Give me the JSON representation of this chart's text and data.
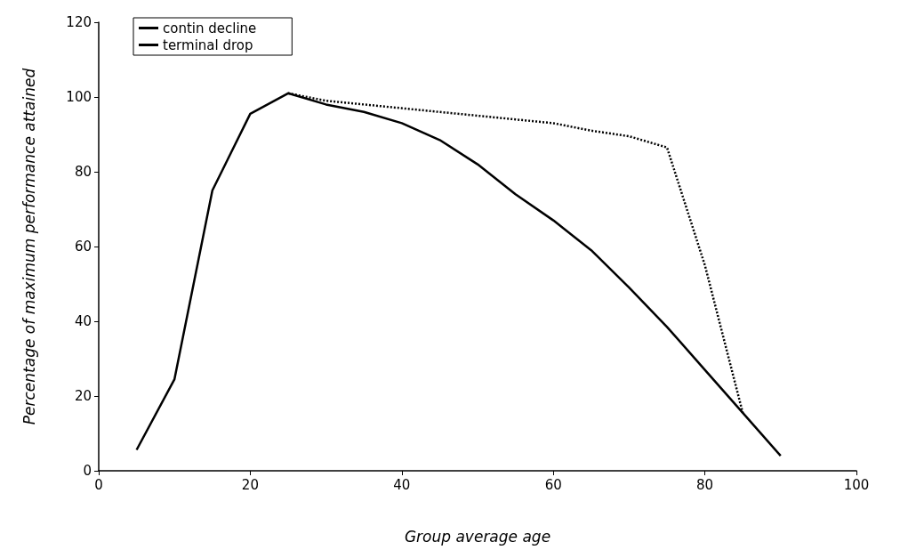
{
  "chart_data": {
    "type": "line",
    "xlabel": "Group average age",
    "ylabel": "Percentage of maximum performance attained",
    "xlim": [
      0,
      100
    ],
    "xticks": [
      0,
      20,
      40,
      60,
      80,
      100
    ],
    "ylim": [
      0,
      120
    ],
    "yticks": [
      0,
      20,
      40,
      60,
      80,
      100,
      120
    ],
    "grid": false,
    "legend": "top left",
    "marker": "none",
    "series": [
      {
        "name": "contin decline",
        "color": "#000000",
        "line_style": "solid",
        "x": [
          5,
          10,
          15,
          20,
          25,
          30,
          35,
          40,
          45,
          50,
          55,
          60,
          65,
          70,
          75,
          80,
          85,
          90
        ],
        "values": [
          5.6,
          24.5,
          75,
          95.5,
          101,
          98,
          96,
          93,
          88.5,
          82,
          74,
          67,
          59,
          49,
          38.5,
          27,
          15.5,
          4
        ]
      },
      {
        "name": "terminal drop",
        "color": "#000000",
        "line_style": "dotted",
        "x": [
          25,
          30,
          35,
          40,
          45,
          50,
          55,
          60,
          65,
          70,
          75,
          80,
          85
        ],
        "values": [
          101,
          99,
          98,
          97,
          96,
          95,
          94,
          93,
          91,
          89.5,
          86.5,
          55,
          15.5
        ]
      }
    ]
  }
}
